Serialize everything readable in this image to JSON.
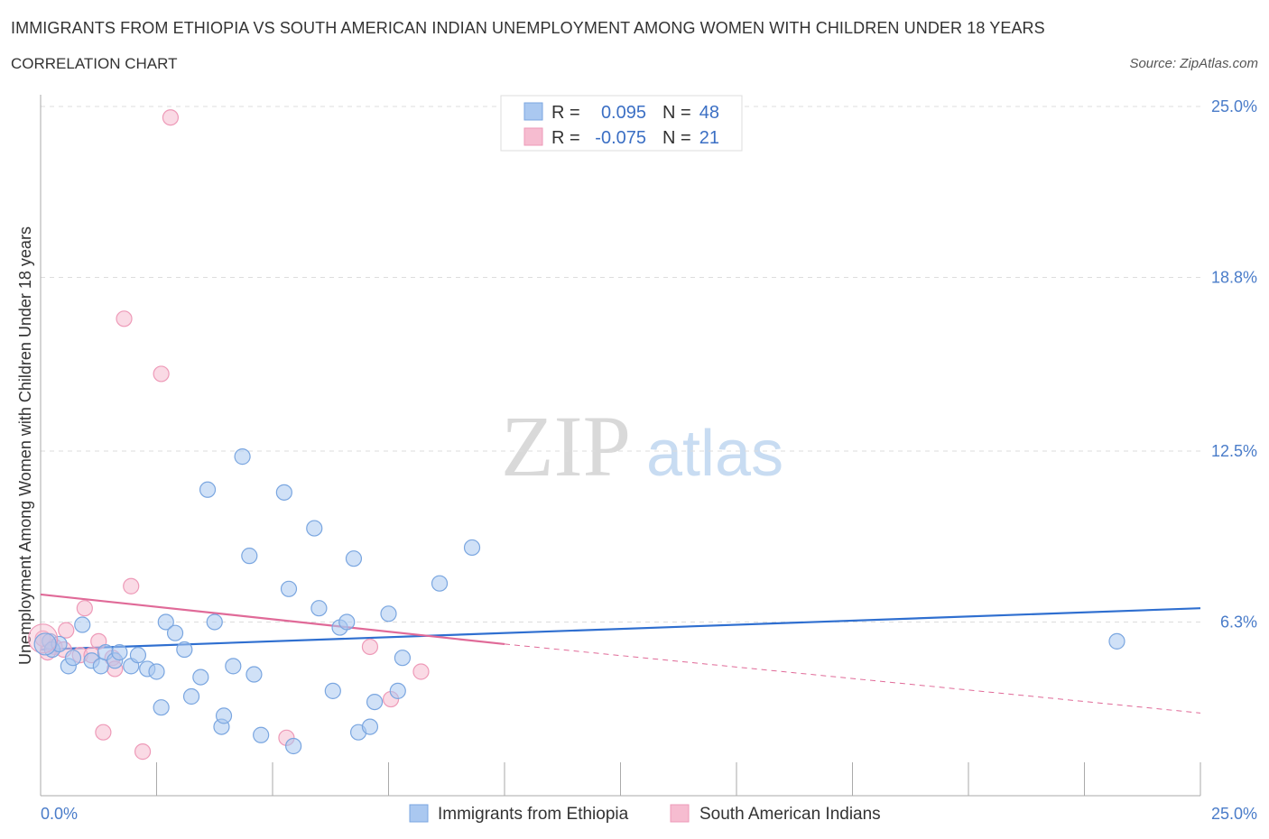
{
  "header": {
    "title": "IMMIGRANTS FROM ETHIOPIA VS SOUTH AMERICAN INDIAN UNEMPLOYMENT AMONG WOMEN WITH CHILDREN UNDER 18 YEARS",
    "subtitle": "CORRELATION CHART",
    "source": "Source: ZipAtlas.com"
  },
  "watermark": {
    "zip": "ZIP",
    "atlas": "atlas"
  },
  "colors": {
    "blue_fill": "#aac8f0",
    "blue_stroke": "#7aa6e0",
    "blue_line": "#2f6fd0",
    "pink_fill": "#f6bcd0",
    "pink_stroke": "#ee9ab8",
    "pink_line": "#e06a98",
    "grid": "#dddddd",
    "axis_text": "#4a7cc9"
  },
  "legend_top": {
    "rows": [
      {
        "r_label": "R =",
        "r_value": "0.095",
        "n_label": "N =",
        "n_value": "48",
        "series": "blue"
      },
      {
        "r_label": "R =",
        "r_value": "-0.075",
        "n_label": "N =",
        "n_value": "21",
        "series": "pink"
      }
    ]
  },
  "chart_data": {
    "type": "scatter",
    "title": "IMMIGRANTS FROM ETHIOPIA VS SOUTH AMERICAN INDIAN UNEMPLOYMENT AMONG WOMEN WITH CHILDREN UNDER 18 YEARS",
    "xlabel": "",
    "ylabel": "Unemployment Among Women with Children Under 18 years",
    "xlim": [
      0,
      25
    ],
    "ylim": [
      0,
      25
    ],
    "x_tick_labels": [
      "0.0%",
      "25.0%"
    ],
    "y_ticks": [
      6.3,
      12.5,
      18.8,
      25.0
    ],
    "y_tick_labels": [
      "6.3%",
      "12.5%",
      "18.8%",
      "25.0%"
    ],
    "grid": true,
    "legend_position": "bottom",
    "series": [
      {
        "name": "Immigrants from Ethiopia",
        "color": "blue",
        "r": 0.095,
        "n": 48,
        "trend": {
          "x0": 0,
          "y0": 5.3,
          "x1": 25,
          "y1": 6.8
        },
        "points": [
          [
            0.2,
            5.6
          ],
          [
            0.25,
            5.3
          ],
          [
            0.4,
            5.5
          ],
          [
            0.6,
            4.7
          ],
          [
            0.7,
            5.0
          ],
          [
            0.9,
            6.2
          ],
          [
            1.1,
            4.9
          ],
          [
            1.3,
            4.7
          ],
          [
            1.4,
            5.2
          ],
          [
            1.6,
            4.9
          ],
          [
            1.7,
            5.2
          ],
          [
            1.95,
            4.7
          ],
          [
            2.1,
            5.1
          ],
          [
            2.3,
            4.6
          ],
          [
            2.5,
            4.5
          ],
          [
            2.6,
            3.2
          ],
          [
            2.7,
            6.3
          ],
          [
            2.9,
            5.9
          ],
          [
            3.1,
            5.3
          ],
          [
            3.25,
            3.6
          ],
          [
            3.45,
            4.3
          ],
          [
            3.6,
            11.1
          ],
          [
            3.75,
            6.3
          ],
          [
            3.9,
            2.5
          ],
          [
            3.95,
            2.9
          ],
          [
            4.15,
            4.7
          ],
          [
            4.35,
            12.3
          ],
          [
            4.5,
            8.7
          ],
          [
            4.6,
            4.4
          ],
          [
            4.75,
            2.2
          ],
          [
            5.25,
            11.0
          ],
          [
            5.35,
            7.5
          ],
          [
            5.45,
            1.8
          ],
          [
            5.9,
            9.7
          ],
          [
            6.0,
            6.8
          ],
          [
            6.3,
            3.8
          ],
          [
            6.45,
            6.1
          ],
          [
            6.6,
            6.3
          ],
          [
            6.75,
            8.6
          ],
          [
            6.85,
            2.3
          ],
          [
            7.1,
            2.5
          ],
          [
            7.2,
            3.4
          ],
          [
            7.5,
            6.6
          ],
          [
            7.7,
            3.8
          ],
          [
            7.8,
            5.0
          ],
          [
            8.6,
            7.7
          ],
          [
            9.3,
            9.0
          ],
          [
            23.2,
            5.6
          ]
        ]
      },
      {
        "name": "South American Indians",
        "color": "pink",
        "r": -0.075,
        "n": 21,
        "trend": {
          "x0": 0,
          "y0": 7.3,
          "x1": 10.0,
          "y1": 5.5,
          "dash_x1": 25,
          "dash_y1": 3.0
        },
        "points": [
          [
            0.05,
            5.7
          ],
          [
            0.3,
            5.4
          ],
          [
            0.5,
            5.3
          ],
          [
            0.55,
            6.0
          ],
          [
            0.85,
            5.1
          ],
          [
            0.95,
            6.8
          ],
          [
            1.1,
            5.1
          ],
          [
            1.25,
            5.6
          ],
          [
            1.35,
            2.3
          ],
          [
            1.55,
            5.0
          ],
          [
            1.6,
            4.6
          ],
          [
            1.8,
            17.3
          ],
          [
            1.95,
            7.6
          ],
          [
            2.2,
            1.6
          ],
          [
            2.6,
            15.3
          ],
          [
            2.8,
            24.6
          ],
          [
            5.3,
            2.1
          ],
          [
            7.1,
            5.4
          ],
          [
            7.55,
            3.5
          ],
          [
            8.2,
            4.5
          ],
          [
            0.15,
            5.2
          ]
        ]
      }
    ]
  },
  "legend_bottom": {
    "items": [
      {
        "label": "Immigrants from Ethiopia",
        "series": "blue"
      },
      {
        "label": "South American Indians",
        "series": "pink"
      }
    ]
  }
}
